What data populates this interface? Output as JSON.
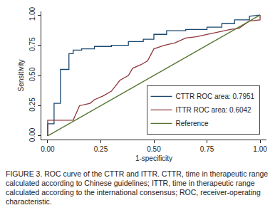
{
  "chart_data": {
    "type": "line",
    "xlabel": "1-specificity",
    "ylabel": "Sensitivity",
    "caption": "FIGURE 3. ROC curve of the CTTR and ITTR. CTTR, time in therapeutic range calculated according to Chinese guidelines; ITTR, time in therapeutic range calculated according to the international consensus; ROC, receiver-operating characteristic.",
    "xlim": [
      -0.03,
      1.03
    ],
    "ylim": [
      -0.03,
      1.03
    ],
    "xticks": [
      {
        "value": 0,
        "label": "0.00"
      },
      {
        "value": 0.25,
        "label": "0.25"
      },
      {
        "value": 0.5,
        "label": "0.50"
      },
      {
        "value": 0.75,
        "label": "0.75"
      },
      {
        "value": 1,
        "label": "1.00"
      }
    ],
    "yticks": [
      {
        "value": 0,
        "label": "0.00"
      },
      {
        "value": 0.25,
        "label": "0.25"
      },
      {
        "value": 0.5,
        "label": "0.50"
      },
      {
        "value": 0.75,
        "label": "0.75"
      },
      {
        "value": 1,
        "label": "1.00"
      }
    ],
    "grid": false,
    "legend": "lower right",
    "series": [
      {
        "name": "CTTR ROC area: 0.7951",
        "color": "#1a476f",
        "x": [
          0,
          0,
          0.03,
          0.03,
          0.06,
          0.06,
          0.1,
          0.1,
          0.12,
          0.12,
          0.16,
          0.16,
          0.22,
          0.22,
          0.3,
          0.3,
          0.38,
          0.38,
          0.45,
          0.45,
          0.5,
          0.5,
          0.56,
          0.56,
          0.65,
          0.65,
          0.75,
          0.75,
          0.82,
          0.82,
          0.88,
          0.88,
          0.95,
          0.95,
          1
        ],
        "values": [
          0,
          0.1,
          0.1,
          0.27,
          0.27,
          0.55,
          0.55,
          0.68,
          0.68,
          0.71,
          0.71,
          0.72,
          0.72,
          0.74,
          0.74,
          0.75,
          0.75,
          0.78,
          0.78,
          0.8,
          0.8,
          0.84,
          0.84,
          0.87,
          0.87,
          0.88,
          0.88,
          0.9,
          0.9,
          0.93,
          0.93,
          0.96,
          0.96,
          0.99,
          1
        ]
      },
      {
        "name": "ITTR ROC area: 0.6042",
        "color": "#90353b",
        "x": [
          0,
          0,
          0.12,
          0.15,
          0.2,
          0.22,
          0.26,
          0.3,
          0.34,
          0.38,
          0.4,
          0.44,
          0.47,
          0.5,
          0.55,
          0.6,
          0.65,
          0.7,
          0.75,
          0.8,
          0.86,
          0.9,
          0.95,
          1,
          1
        ],
        "values": [
          0,
          0.13,
          0.13,
          0.25,
          0.27,
          0.3,
          0.33,
          0.37,
          0.46,
          0.5,
          0.56,
          0.59,
          0.62,
          0.72,
          0.75,
          0.77,
          0.81,
          0.82,
          0.84,
          0.86,
          0.88,
          0.89,
          0.95,
          0.96,
          1
        ]
      },
      {
        "name": "Reference",
        "color": "#55752f",
        "x": [
          0,
          1
        ],
        "values": [
          0,
          1
        ]
      }
    ]
  }
}
